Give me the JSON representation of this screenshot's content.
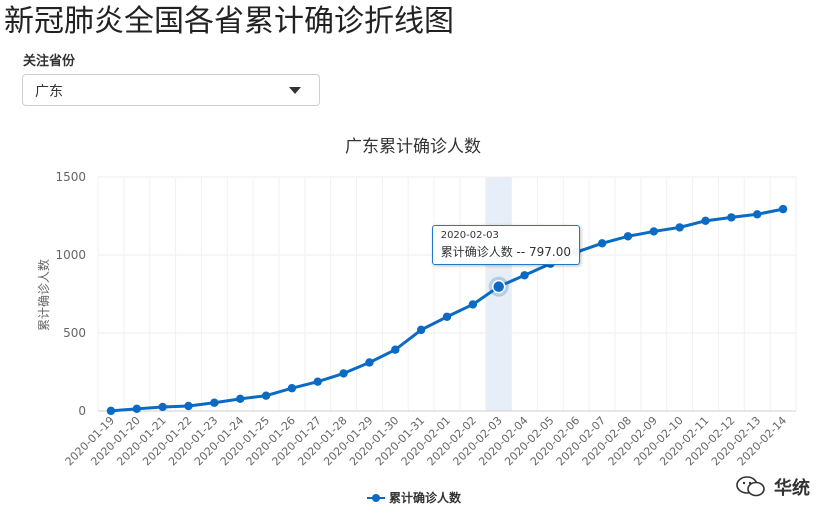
{
  "page": {
    "title": "新冠肺炎全国各省累计确诊折线图"
  },
  "filter": {
    "label": "关注省份",
    "selected": "广东"
  },
  "tooltip": {
    "date": "2020-02-03",
    "text": "累计确诊人数 -- 797.00"
  },
  "watermark": {
    "text": "华统",
    "icon": "wechat-icon"
  },
  "colors": {
    "series": "#0a6ac4",
    "highlight_band": "#e8eef7"
  },
  "chart_data": {
    "type": "line",
    "title": "广东累计确诊人数",
    "ylabel": "累计确诊人数",
    "xlabel": "",
    "ylim": [
      0,
      1500
    ],
    "yticks": [
      0,
      500,
      1000,
      1500
    ],
    "grid": true,
    "legend_position": "bottom-center",
    "x": [
      "2020-01-19",
      "2020-01-20",
      "2020-01-21",
      "2020-01-22",
      "2020-01-23",
      "2020-01-24",
      "2020-01-25",
      "2020-01-26",
      "2020-01-27",
      "2020-01-28",
      "2020-01-29",
      "2020-01-30",
      "2020-01-31",
      "2020-02-01",
      "2020-02-02",
      "2020-02-03",
      "2020-02-04",
      "2020-02-05",
      "2020-02-06",
      "2020-02-07",
      "2020-02-08",
      "2020-02-09",
      "2020-02-10",
      "2020-02-11",
      "2020-02-12",
      "2020-02-13",
      "2020-02-14"
    ],
    "series": [
      {
        "name": "累计确诊人数",
        "values": [
          1,
          14,
          26,
          32,
          53,
          78,
          98,
          146,
          188,
          241,
          311,
          393,
          520,
          604,
          683,
          797,
          870,
          944,
          1018,
          1075,
          1120,
          1151,
          1177,
          1219,
          1241,
          1261,
          1294
        ]
      }
    ],
    "highlight_index": 15
  }
}
